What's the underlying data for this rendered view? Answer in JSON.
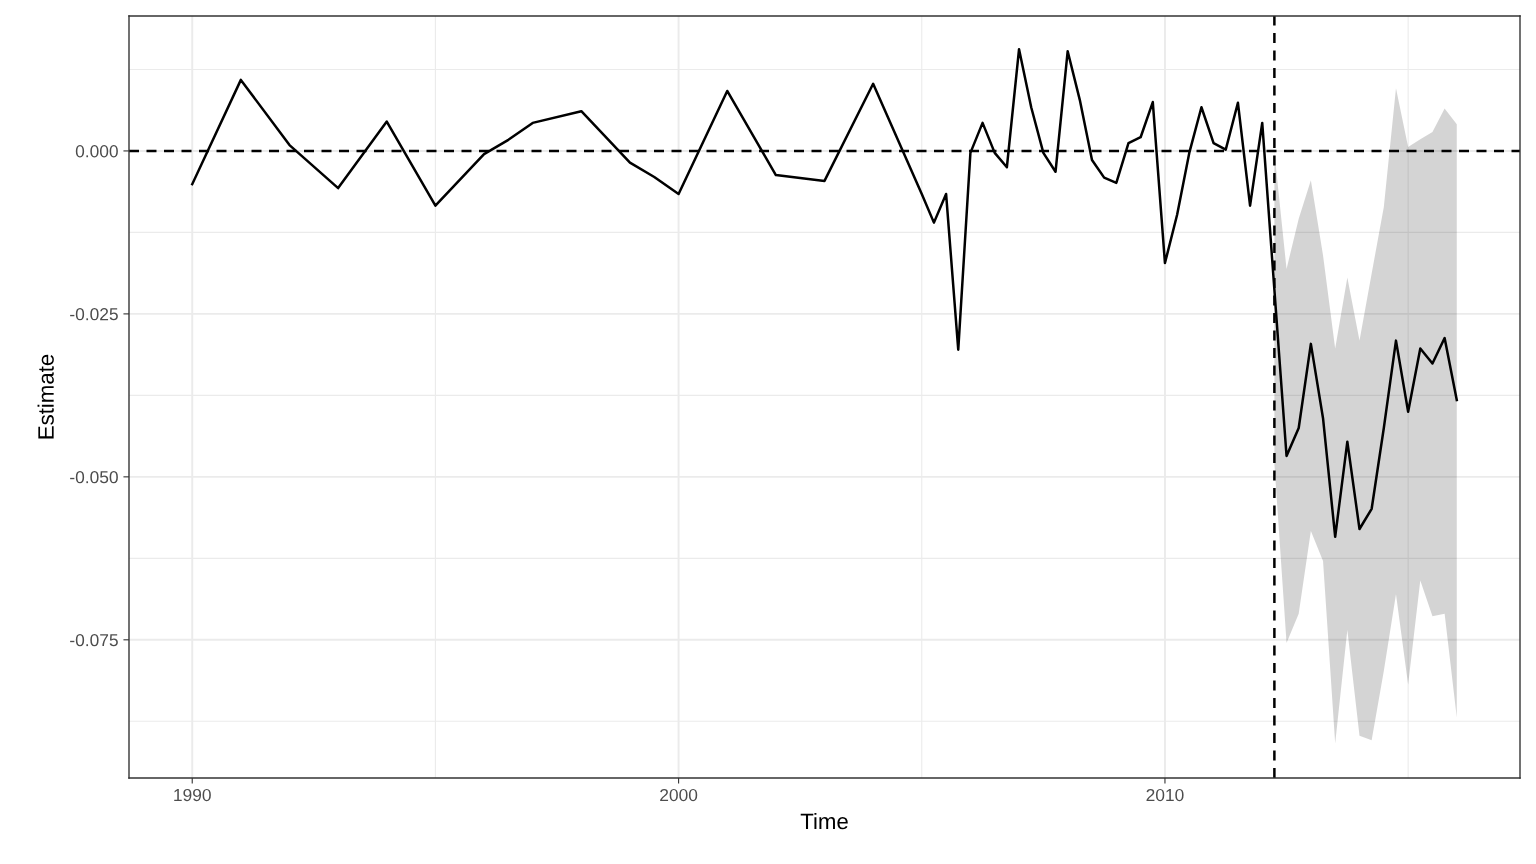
{
  "chart_data": {
    "type": "line",
    "xlabel": "Time",
    "ylabel": "Estimate",
    "x": [
      1990,
      1991,
      1992,
      1993,
      1994,
      1995,
      1996,
      1996.5,
      1997,
      1998,
      1999,
      1999.5,
      2000,
      2001,
      2002,
      2003,
      2004,
      2005,
      2005.25,
      2005.5,
      2005.75,
      2006,
      2006.25,
      2006.5,
      2006.75,
      2007,
      2007.25,
      2007.5,
      2007.75,
      2008,
      2008.25,
      2008.5,
      2008.75,
      2009,
      2009.25,
      2009.5,
      2009.75,
      2010,
      2010.25,
      2010.5,
      2010.75,
      2011,
      2011.25,
      2011.5,
      2011.75,
      2012,
      2012.25,
      2012.5,
      2012.75,
      2013,
      2013.25,
      2013.5,
      2013.75,
      2014,
      2014.25,
      2014.5,
      2014.75,
      2015,
      2015.25,
      2015.5,
      2015.75,
      2016
    ],
    "series": [
      {
        "color": "#000000",
        "values": [
          -0.0051,
          0.0109,
          0.0009,
          -0.0057,
          0.0045,
          -0.0084,
          -0.0005,
          0.0017,
          0.0043,
          0.0061,
          -0.0018,
          -0.004,
          -0.0066,
          0.0092,
          -0.0037,
          -0.0046,
          0.0103,
          -0.0066,
          -0.011,
          -0.0066,
          -0.0305,
          -0.0003,
          0.0043,
          -0.0003,
          -0.0025,
          0.0156,
          0.0067,
          -0.0003,
          -0.0032,
          0.0153,
          0.0078,
          -0.0014,
          -0.0041,
          -0.0049,
          0.0012,
          0.0021,
          0.0075,
          -0.0172,
          -0.0098,
          -0.0003,
          0.0067,
          0.0012,
          0.0002,
          0.0074,
          -0.0084,
          0.0043,
          -0.0213,
          -0.0468,
          -0.0425,
          -0.0296,
          -0.041,
          -0.0592,
          -0.0446,
          -0.058,
          -0.0549,
          -0.0425,
          -0.0291,
          -0.04,
          -0.0303,
          -0.0326,
          -0.0287,
          -0.0382
        ],
        "lower": [
          null,
          null,
          null,
          null,
          null,
          null,
          null,
          null,
          null,
          null,
          null,
          null,
          null,
          null,
          null,
          null,
          null,
          null,
          null,
          null,
          null,
          null,
          null,
          null,
          null,
          null,
          null,
          null,
          null,
          null,
          null,
          null,
          null,
          null,
          null,
          null,
          null,
          null,
          null,
          null,
          null,
          null,
          null,
          null,
          null,
          null,
          -0.048,
          -0.0755,
          -0.071,
          -0.0583,
          -0.0629,
          -0.0909,
          -0.0735,
          -0.0897,
          -0.0904,
          -0.0798,
          -0.068,
          -0.0819,
          -0.0659,
          -0.0714,
          -0.071,
          -0.0869
        ],
        "upper": [
          null,
          null,
          null,
          null,
          null,
          null,
          null,
          null,
          null,
          null,
          null,
          null,
          null,
          null,
          null,
          null,
          null,
          null,
          null,
          null,
          null,
          null,
          null,
          null,
          null,
          null,
          null,
          null,
          null,
          null,
          null,
          null,
          null,
          null,
          null,
          null,
          null,
          null,
          null,
          null,
          null,
          null,
          null,
          null,
          null,
          null,
          -0.0002,
          -0.0181,
          -0.0104,
          -0.0045,
          -0.016,
          -0.0303,
          -0.0194,
          -0.0291,
          -0.0188,
          -0.0086,
          0.0096,
          0.0006,
          0.0018,
          0.0029,
          0.0065,
          0.0041
        ]
      }
    ],
    "xlim": [
      1988.7,
      2017.3
    ],
    "ylim": [
      -0.0962,
      0.0207
    ],
    "xticks": [
      1990,
      2000,
      2010
    ],
    "yticks": [
      {
        "value": 0,
        "label": "0.000"
      },
      {
        "value": -0.025,
        "label": "-0.025"
      },
      {
        "value": -0.05,
        "label": "-0.050"
      },
      {
        "value": -0.075,
        "label": "-0.075"
      }
    ],
    "ref_lines": [
      {
        "axis": "y",
        "value": 0,
        "color": "#000000",
        "line_style": "dashed"
      },
      {
        "axis": "x",
        "value": 2012.25,
        "color": "#000000",
        "line_style": "dashed"
      }
    ],
    "grid": true,
    "legend": false,
    "line_style": "solid"
  }
}
